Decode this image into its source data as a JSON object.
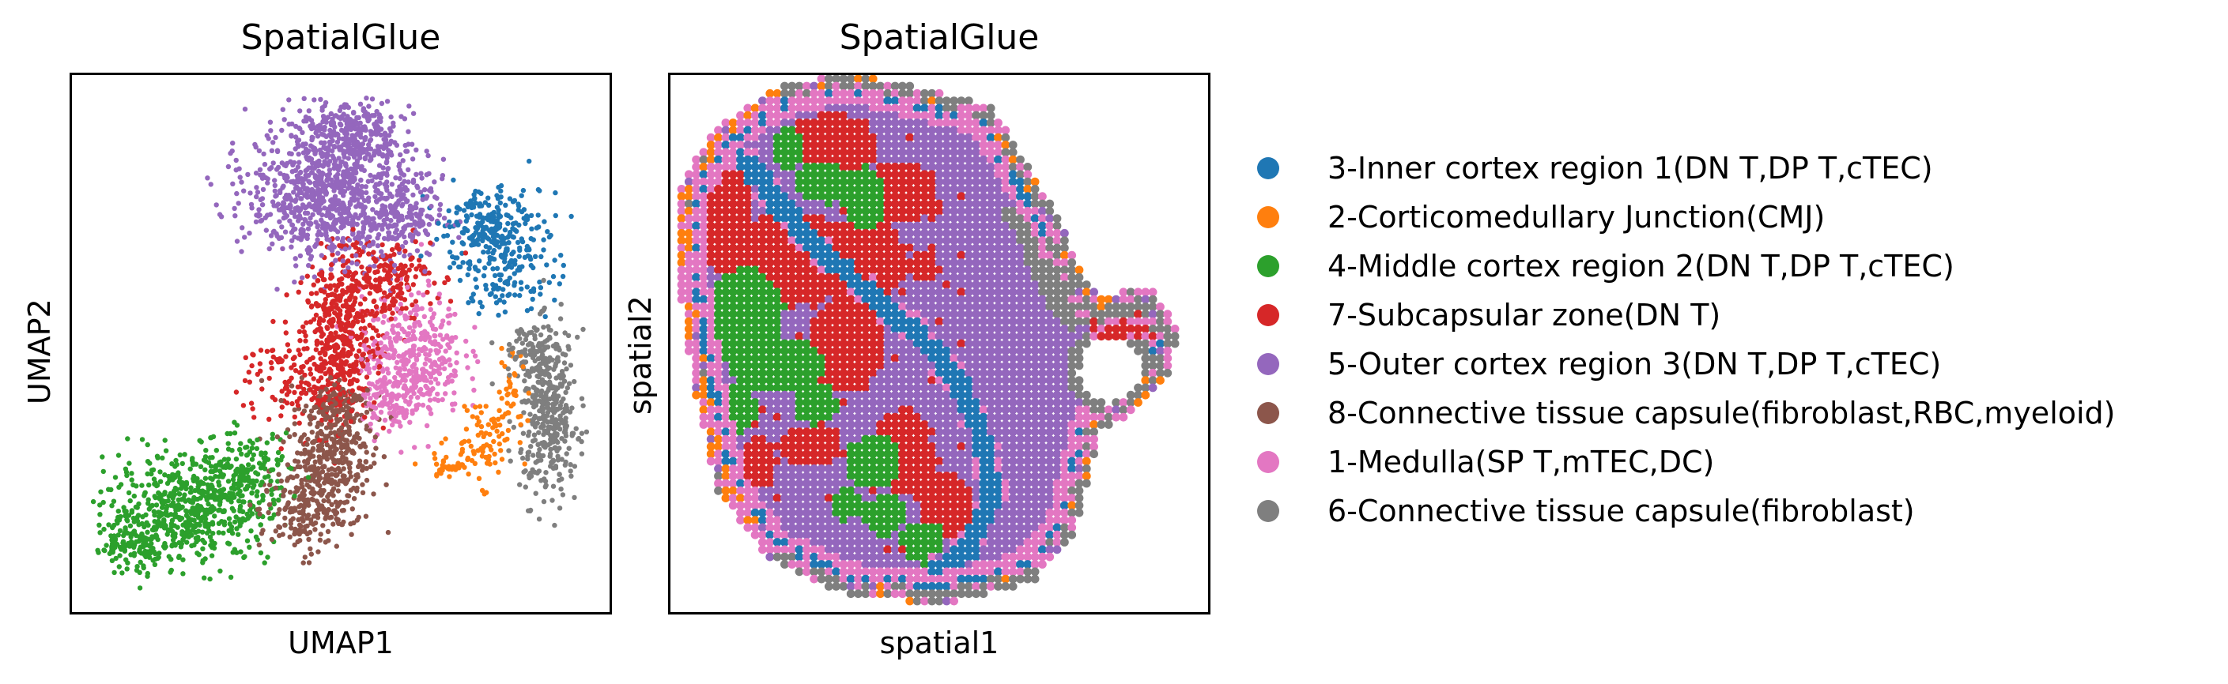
{
  "chart_data": [
    {
      "type": "scatter",
      "title": "SpatialGlue",
      "xlabel": "UMAP1",
      "ylabel": "UMAP2",
      "xlim": [
        0,
        100
      ],
      "ylim": [
        0,
        100
      ],
      "grid": false,
      "ticks": false,
      "series": [
        {
          "name": "3-Inner cortex region 1(DN T,DP T,cTEC)",
          "color": "#1f77b4",
          "clusters": [
            {
              "x": 82,
              "y": 68,
              "sx": 5,
              "sy": 6,
              "n": 260
            },
            {
              "x": 77,
              "y": 74,
              "sx": 4,
              "sy": 3,
              "n": 100
            }
          ]
        },
        {
          "name": "2-Corticomedullary Junction(CMJ)",
          "color": "#ff7f0e",
          "clusters": [
            {
              "x": 78,
              "y": 31,
              "sx": 3,
              "sy": 4,
              "n": 70
            },
            {
              "x": 71,
              "y": 26,
              "sx": 3,
              "sy": 1.5,
              "n": 40
            },
            {
              "x": 83,
              "y": 40,
              "sx": 1.5,
              "sy": 4,
              "n": 40
            }
          ]
        },
        {
          "name": "4-Middle cortex region 2(DN T,DP T,cTEC)",
          "color": "#2ca02c",
          "clusters": [
            {
              "x": 20,
              "y": 17,
              "sx": 8,
              "sy": 5,
              "n": 520
            },
            {
              "x": 30,
              "y": 24,
              "sx": 5,
              "sy": 4,
              "n": 200
            },
            {
              "x": 9,
              "y": 10,
              "sx": 4,
              "sy": 2.5,
              "n": 120
            }
          ]
        },
        {
          "name": "7-Subcapsular zone(DN T)",
          "color": "#d62728",
          "clusters": [
            {
              "x": 50,
              "y": 50,
              "sx": 3.5,
              "sy": 8,
              "n": 460
            },
            {
              "x": 58,
              "y": 63,
              "sx": 5,
              "sy": 4,
              "n": 200
            },
            {
              "x": 40,
              "y": 43,
              "sx": 5,
              "sy": 5,
              "n": 110
            }
          ]
        },
        {
          "name": "5-Outer cortex region 3(DN T,DP T,cTEC)",
          "color": "#9467bd",
          "clusters": [
            {
              "x": 48,
              "y": 80,
              "sx": 8,
              "sy": 7,
              "n": 900
            },
            {
              "x": 52,
              "y": 91,
              "sx": 5,
              "sy": 3,
              "n": 220
            },
            {
              "x": 62,
              "y": 75,
              "sx": 4,
              "sy": 4,
              "n": 160
            }
          ]
        },
        {
          "name": "8-Connective tissue capsule(fibroblast,RBC,myeloid)",
          "color": "#8c564b",
          "clusters": [
            {
              "x": 48,
              "y": 28,
              "sx": 4,
              "sy": 7,
              "n": 360
            },
            {
              "x": 42,
              "y": 17,
              "sx": 4,
              "sy": 4,
              "n": 150
            },
            {
              "x": 50,
              "y": 38,
              "sx": 3,
              "sy": 2.5,
              "n": 80
            }
          ]
        },
        {
          "name": "1-Medulla(SP T,mTEC,DC)",
          "color": "#e377c2",
          "clusters": [
            {
              "x": 64,
              "y": 48,
              "sx": 5,
              "sy": 6,
              "n": 380
            },
            {
              "x": 60,
              "y": 38,
              "sx": 3,
              "sy": 3,
              "n": 100
            }
          ]
        },
        {
          "name": "6-Connective tissue capsule(fibroblast)",
          "color": "#7f7f7f",
          "clusters": [
            {
              "x": 91,
              "y": 36,
              "sx": 2.8,
              "sy": 8,
              "n": 380
            },
            {
              "x": 87,
              "y": 48,
              "sx": 3,
              "sy": 3,
              "n": 80
            }
          ]
        }
      ]
    },
    {
      "type": "scatter",
      "title": "SpatialGlue",
      "xlabel": "spatial1",
      "ylabel": "spatial2",
      "grid": false,
      "ticks": false,
      "grid_cols": 73,
      "grid_rows": 73,
      "tissue_outline": [
        [
          20,
          95
        ],
        [
          33,
          98
        ],
        [
          46,
          95
        ],
        [
          58,
          92
        ],
        [
          64,
          82
        ],
        [
          70,
          72
        ],
        [
          75,
          60
        ],
        [
          80,
          56
        ],
        [
          88,
          58
        ],
        [
          92,
          52
        ],
        [
          90,
          45
        ],
        [
          84,
          39
        ],
        [
          78,
          36
        ],
        [
          76,
          28
        ],
        [
          73,
          16
        ],
        [
          66,
          8
        ],
        [
          50,
          4
        ],
        [
          33,
          6
        ],
        [
          20,
          12
        ],
        [
          11,
          24
        ],
        [
          7,
          42
        ],
        [
          4,
          62
        ],
        [
          4,
          78
        ],
        [
          10,
          88
        ]
      ],
      "series": [
        {
          "name": "3-Inner cortex region 1(DN T,DP T,cTEC)",
          "color": "#1f77b4",
          "band": [
            [
              14,
              84
            ],
            [
              25,
              70
            ],
            [
              35,
              61
            ],
            [
              46,
              52
            ],
            [
              54,
              42
            ],
            [
              58,
              32
            ],
            [
              60,
              22
            ],
            [
              56,
              12
            ],
            [
              50,
              8
            ]
          ]
        },
        {
          "name": "2-Corticomedullary Junction(CMJ)",
          "color": "#ff7f0e"
        },
        {
          "name": "4-Middle cortex region 2(DN T,DP T,cTEC)",
          "color": "#2ca02c",
          "blobs": [
            [
              14,
              55,
              7,
              9
            ],
            [
              20,
              46,
              9,
              5
            ],
            [
              22,
              86,
              3,
              4
            ],
            [
              28,
              80,
              5,
              4
            ],
            [
              36,
              77,
              4,
              6
            ],
            [
              12,
              38,
              4,
              5
            ],
            [
              27,
              39,
              4,
              4
            ],
            [
              38,
              28,
              5,
              5
            ],
            [
              40,
              18,
              4,
              4
            ],
            [
              47,
              13,
              4,
              4
            ],
            [
              33,
              20,
              3,
              3
            ]
          ]
        },
        {
          "name": "7-Subcapsular zone(DN T)",
          "color": "#d62728",
          "blobs": [
            [
              10,
              76,
              5,
              13
            ],
            [
              22,
              66,
              10,
              9
            ],
            [
              36,
              66,
              8,
              8
            ],
            [
              42,
              78,
              8,
              6
            ],
            [
              30,
              87,
              8,
              6
            ],
            [
              33,
              50,
              7,
              9
            ],
            [
              26,
              31,
              6,
              4
            ],
            [
              43,
              30,
              6,
              8
            ],
            [
              51,
              20,
              5,
              6
            ],
            [
              16,
              28,
              4,
              5
            ],
            [
              47,
              64,
              3,
              3
            ],
            [
              83,
              52,
              3,
              2
            ]
          ]
        },
        {
          "name": "5-Outer cortex region 3(DN T,DP T,cTEC)",
          "color": "#9467bd"
        },
        {
          "name": "8-Connective tissue capsule(fibroblast,RBC,myeloid)",
          "color": "#8c564b"
        },
        {
          "name": "1-Medulla(SP T,mTEC,DC)",
          "color": "#e377c2"
        },
        {
          "name": "6-Connective tissue capsule(fibroblast)",
          "color": "#7f7f7f"
        }
      ]
    }
  ],
  "legend": {
    "placement": "right",
    "items": [
      {
        "label": "3-Inner cortex region 1(DN T,DP T,cTEC)",
        "color": "#1f77b4"
      },
      {
        "label": "2-Corticomedullary Junction(CMJ)",
        "color": "#ff7f0e"
      },
      {
        "label": "4-Middle cortex region 2(DN T,DP T,cTEC)",
        "color": "#2ca02c"
      },
      {
        "label": "7-Subcapsular zone(DN T)",
        "color": "#d62728"
      },
      {
        "label": "5-Outer cortex region 3(DN T,DP T,cTEC)",
        "color": "#9467bd"
      },
      {
        "label": "8-Connective tissue capsule(fibroblast,RBC,myeloid)",
        "color": "#8c564b"
      },
      {
        "label": "1-Medulla(SP T,mTEC,DC)",
        "color": "#e377c2"
      },
      {
        "label": "6-Connective tissue capsule(fibroblast)",
        "color": "#7f7f7f"
      }
    ]
  }
}
